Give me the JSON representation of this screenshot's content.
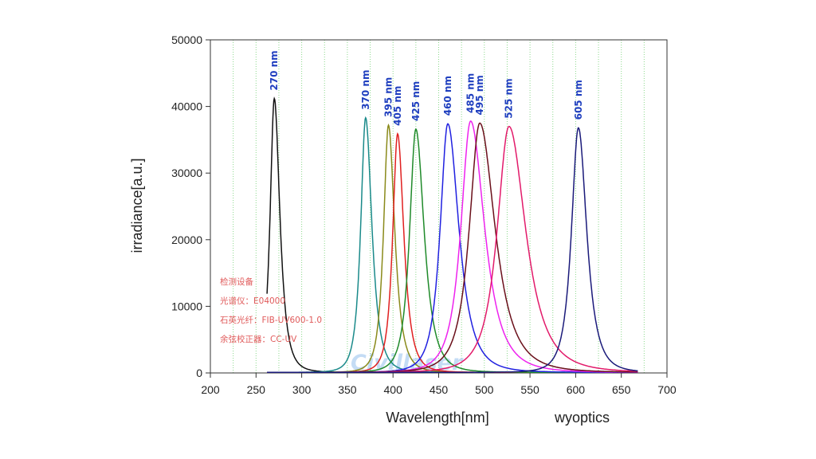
{
  "chart_data": {
    "type": "line",
    "xlabel": "Wavelength[nm]",
    "ylabel": "irradiance[a.u.]",
    "xlim": [
      200,
      700
    ],
    "ylim": [
      0,
      50000
    ],
    "xticks": [
      200,
      250,
      300,
      350,
      400,
      450,
      500,
      550,
      600,
      650,
      700
    ],
    "yticks": [
      0,
      10000,
      20000,
      30000,
      40000,
      50000
    ],
    "grid": "vertical green dotted lines every 25 nm",
    "series": [
      {
        "name": "270 nm",
        "peak_x": 270,
        "peak_y": 41200,
        "width_left": 6,
        "width_right": 8,
        "color": "#111111"
      },
      {
        "name": "370 nm",
        "peak_x": 370,
        "peak_y": 38300,
        "width_left": 7,
        "width_right": 9,
        "color": "#1a8a8a"
      },
      {
        "name": "395 nm",
        "peak_x": 395,
        "peak_y": 37200,
        "width_left": 7,
        "width_right": 9,
        "color": "#8a8a1a"
      },
      {
        "name": "405 nm",
        "peak_x": 405,
        "peak_y": 35900,
        "width_left": 7,
        "width_right": 9,
        "color": "#e02020"
      },
      {
        "name": "425 nm",
        "peak_x": 425,
        "peak_y": 36600,
        "width_left": 9,
        "width_right": 12,
        "color": "#1f8a2a"
      },
      {
        "name": "460 nm",
        "peak_x": 460,
        "peak_y": 37400,
        "width_left": 11,
        "width_right": 16,
        "color": "#2020e0"
      },
      {
        "name": "485 nm",
        "peak_x": 485,
        "peak_y": 37800,
        "width_left": 14,
        "width_right": 20,
        "color": "#ee22ee"
      },
      {
        "name": "495 nm",
        "peak_x": 495,
        "peak_y": 37500,
        "width_left": 15,
        "width_right": 22,
        "color": "#6a0f1a"
      },
      {
        "name": "525 nm",
        "peak_x": 527,
        "peak_y": 37000,
        "width_left": 17,
        "width_right": 24,
        "color": "#e21a6a"
      },
      {
        "name": "605 nm",
        "peak_x": 603,
        "peak_y": 36800,
        "width_left": 10,
        "width_right": 12,
        "color": "#1a1a7a"
      }
    ],
    "annotations": {
      "notes": [
        "检测设备",
        "光谱仪：E04000",
        "石英光纤：FIB-UV600-1.0",
        "余弦校正器：CC-UV"
      ],
      "watermark": "Civillaser",
      "brand": "wyoptics"
    }
  },
  "colors": {
    "grid": "#8ad88a",
    "axis": "#333333",
    "peak_label": "#1f3fbf",
    "note": "#e05a5a"
  }
}
